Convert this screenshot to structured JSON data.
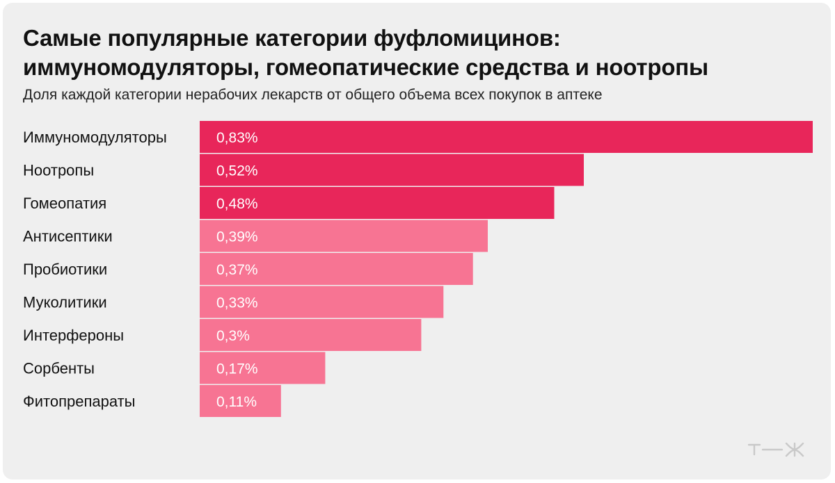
{
  "title_line1": "Самые популярные категории фуфломицинов:",
  "title_line2": "иммуномодуляторы, гомеопатические средства и ноотропы",
  "subtitle": "Доля каждой категории нерабочих лекарств от общего объема всех покупок в аптеке",
  "logo_text": "т—ж",
  "colors": {
    "highlight": "#e8265a",
    "regular": "#f77493",
    "background": "#efefef"
  },
  "chart_data": {
    "type": "bar",
    "orientation": "horizontal",
    "categories": [
      "Иммуномодуляторы",
      "Ноотропы",
      "Гомеопатия",
      "Антисептики",
      "Пробиотики",
      "Муколитики",
      "Интерфероны",
      "Сорбенты",
      "Фитопрепараты"
    ],
    "values": [
      0.83,
      0.52,
      0.48,
      0.39,
      0.37,
      0.33,
      0.3,
      0.17,
      0.11
    ],
    "value_labels": [
      "0,83%",
      "0,52%",
      "0,48%",
      "0,39%",
      "0,37%",
      "0,33%",
      "0,3%",
      "0,17%",
      "0,11%"
    ],
    "highlighted": [
      true,
      true,
      true,
      false,
      false,
      false,
      false,
      false,
      false
    ],
    "unit": "%",
    "xlabel": "",
    "ylabel": "",
    "grid": false,
    "legend": "none"
  }
}
